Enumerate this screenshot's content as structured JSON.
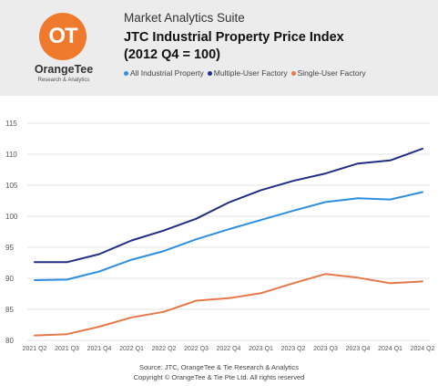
{
  "header": {
    "suite": "Market Analytics Suite",
    "title_line1": "JTC Industrial Property Price Index",
    "title_line2": "(2012 Q4 = 100)",
    "logo": {
      "name": "OrangeTee",
      "sub": "Research & Analytics",
      "mark": "OT",
      "color": "#ef7a2e"
    }
  },
  "footer": {
    "source": "Source: JTC, OrangeTee & Tie Research & Analytics",
    "copyright": "Copyright © OrangeTee & Tie Pte Ltd. All rights reserved"
  },
  "chart_data": {
    "type": "line",
    "categories": [
      "2021 Q2",
      "2021 Q3",
      "2021 Q4",
      "2022 Q1",
      "2022 Q2",
      "2022 Q3",
      "2022 Q4",
      "2023 Q1",
      "2023 Q2",
      "2023 Q3",
      "2023 Q4",
      "2024 Q1",
      "2024 Q2"
    ],
    "series": [
      {
        "name": "All Industrial Property",
        "color": "#2e8ee0",
        "values": [
          89.7,
          89.8,
          91.1,
          93.0,
          94.4,
          96.3,
          97.9,
          99.4,
          100.9,
          102.3,
          102.9,
          102.7,
          103.9
        ]
      },
      {
        "name": "Multiple-User Factory",
        "color": "#1f2f87",
        "values": [
          92.6,
          92.6,
          93.9,
          96.1,
          97.7,
          99.6,
          102.2,
          104.2,
          105.7,
          106.9,
          108.5,
          109.0,
          110.9
        ]
      },
      {
        "name": "Single-User Factory",
        "color": "#e6784a",
        "values": [
          80.8,
          81.0,
          82.2,
          83.7,
          84.6,
          86.4,
          86.8,
          87.6,
          89.2,
          90.7,
          90.1,
          89.2,
          89.5
        ]
      }
    ],
    "yticks": [
      80,
      85,
      90,
      95,
      100,
      105,
      110,
      115
    ],
    "ylim": [
      80,
      115
    ],
    "grid": true,
    "legend_position": "top"
  }
}
